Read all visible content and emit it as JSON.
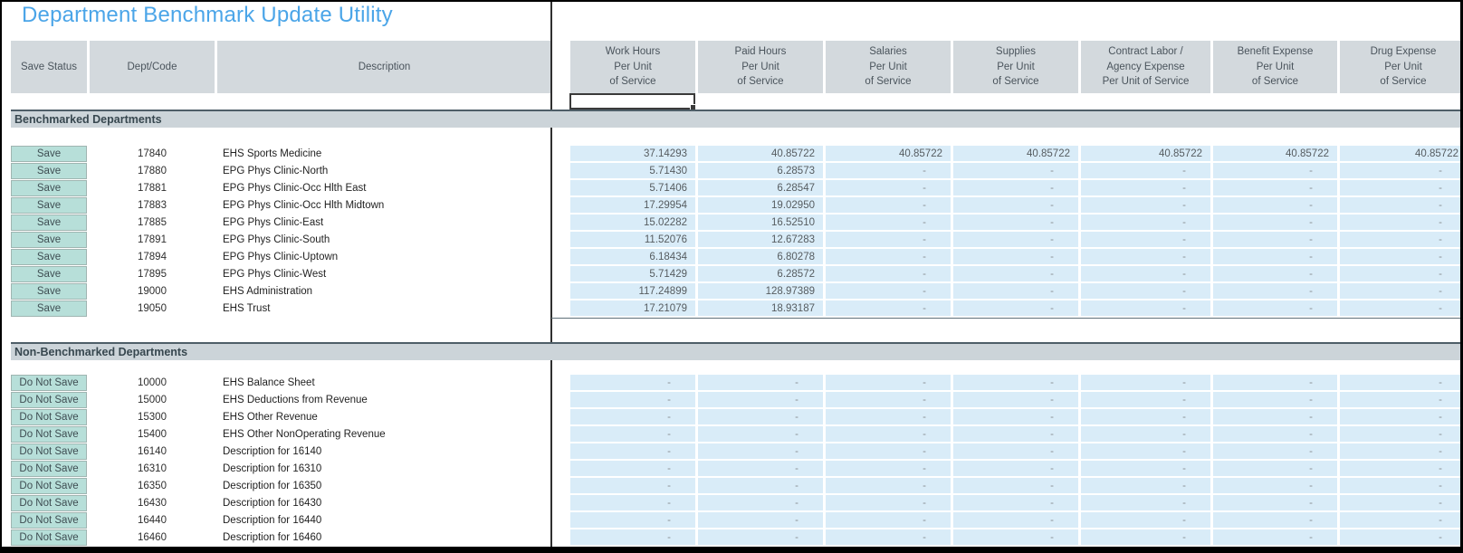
{
  "title": "Department Benchmark Update Utility",
  "colors": {
    "title_accent": "#4BA5E8",
    "header_bg": "#D3D9DD",
    "section_bar_bg": "#CCD4D9",
    "value_cell_bg": "#D9ECF8",
    "button_bg": "#B7DFD9",
    "button_border": "#9FB5B1",
    "freeze_divider": "#2F2F2F"
  },
  "columns": {
    "save_status": "Save Status",
    "dept_code": "Dept/Code",
    "description": "Description",
    "value_headers": [
      "Work Hours\nPer Unit\nof Service",
      "Paid Hours\nPer Unit\nof Service",
      "Salaries\nPer Unit\nof Service",
      "Supplies\nPer Unit\nof Service",
      "Contract Labor /\nAgency Expense\nPer Unit of Service",
      "Benefit Expense\nPer Unit\nof Service",
      "Drug Expense\nPer Unit\nof Service"
    ]
  },
  "sections": [
    {
      "label": "Benchmarked Departments",
      "button_label": "Save",
      "rows": [
        {
          "code": "17840",
          "description": "EHS Sports Medicine",
          "values": [
            "37.14293",
            "40.85722",
            "40.85722",
            "40.85722",
            "40.85722",
            "40.85722",
            "40.85722"
          ]
        },
        {
          "code": "17880",
          "description": "EPG Phys Clinic-North",
          "values": [
            "5.71430",
            "6.28573",
            "-",
            "-",
            "-",
            "-",
            "-"
          ]
        },
        {
          "code": "17881",
          "description": "EPG Phys Clinic-Occ Hlth East",
          "values": [
            "5.71406",
            "6.28547",
            "-",
            "-",
            "-",
            "-",
            "-"
          ]
        },
        {
          "code": "17883",
          "description": "EPG Phys Clinic-Occ Hlth Midtown",
          "values": [
            "17.29954",
            "19.02950",
            "-",
            "-",
            "-",
            "-",
            "-"
          ]
        },
        {
          "code": "17885",
          "description": "EPG Phys Clinic-East",
          "values": [
            "15.02282",
            "16.52510",
            "-",
            "-",
            "-",
            "-",
            "-"
          ]
        },
        {
          "code": "17891",
          "description": "EPG Phys Clinic-South",
          "values": [
            "11.52076",
            "12.67283",
            "-",
            "-",
            "-",
            "-",
            "-"
          ]
        },
        {
          "code": "17894",
          "description": "EPG Phys Clinic-Uptown",
          "values": [
            "6.18434",
            "6.80278",
            "-",
            "-",
            "-",
            "-",
            "-"
          ]
        },
        {
          "code": "17895",
          "description": "EPG Phys Clinic-West",
          "values": [
            "5.71429",
            "6.28572",
            "-",
            "-",
            "-",
            "-",
            "-"
          ]
        },
        {
          "code": "19000",
          "description": "EHS Administration",
          "values": [
            "117.24899",
            "128.97389",
            "-",
            "-",
            "-",
            "-",
            "-"
          ]
        },
        {
          "code": "19050",
          "description": "EHS Trust",
          "values": [
            "17.21079",
            "18.93187",
            "-",
            "-",
            "-",
            "-",
            "-"
          ]
        }
      ]
    },
    {
      "label": "Non-Benchmarked Departments",
      "button_label": "Do Not Save",
      "rows": [
        {
          "code": "10000",
          "description": "EHS Balance Sheet",
          "values": [
            "-",
            "-",
            "-",
            "-",
            "-",
            "-",
            "-"
          ]
        },
        {
          "code": "15000",
          "description": "EHS Deductions from Revenue",
          "values": [
            "-",
            "-",
            "-",
            "-",
            "-",
            "-",
            "-"
          ]
        },
        {
          "code": "15300",
          "description": "EHS Other Revenue",
          "values": [
            "-",
            "-",
            "-",
            "-",
            "-",
            "-",
            "-"
          ]
        },
        {
          "code": "15400",
          "description": "EHS Other NonOperating Revenue",
          "values": [
            "-",
            "-",
            "-",
            "-",
            "-",
            "-",
            "-"
          ]
        },
        {
          "code": "16140",
          "description": "Description for 16140",
          "values": [
            "-",
            "-",
            "-",
            "-",
            "-",
            "-",
            "-"
          ]
        },
        {
          "code": "16310",
          "description": "Description for 16310",
          "values": [
            "-",
            "-",
            "-",
            "-",
            "-",
            "-",
            "-"
          ]
        },
        {
          "code": "16350",
          "description": "Description for 16350",
          "values": [
            "-",
            "-",
            "-",
            "-",
            "-",
            "-",
            "-"
          ]
        },
        {
          "code": "16430",
          "description": "Description for 16430",
          "values": [
            "-",
            "-",
            "-",
            "-",
            "-",
            "-",
            "-"
          ]
        },
        {
          "code": "16440",
          "description": "Description for 16440",
          "values": [
            "-",
            "-",
            "-",
            "-",
            "-",
            "-",
            "-"
          ]
        },
        {
          "code": "16460",
          "description": "Description for 16460",
          "values": [
            "-",
            "-",
            "-",
            "-",
            "-",
            "-",
            "-"
          ]
        }
      ]
    }
  ]
}
